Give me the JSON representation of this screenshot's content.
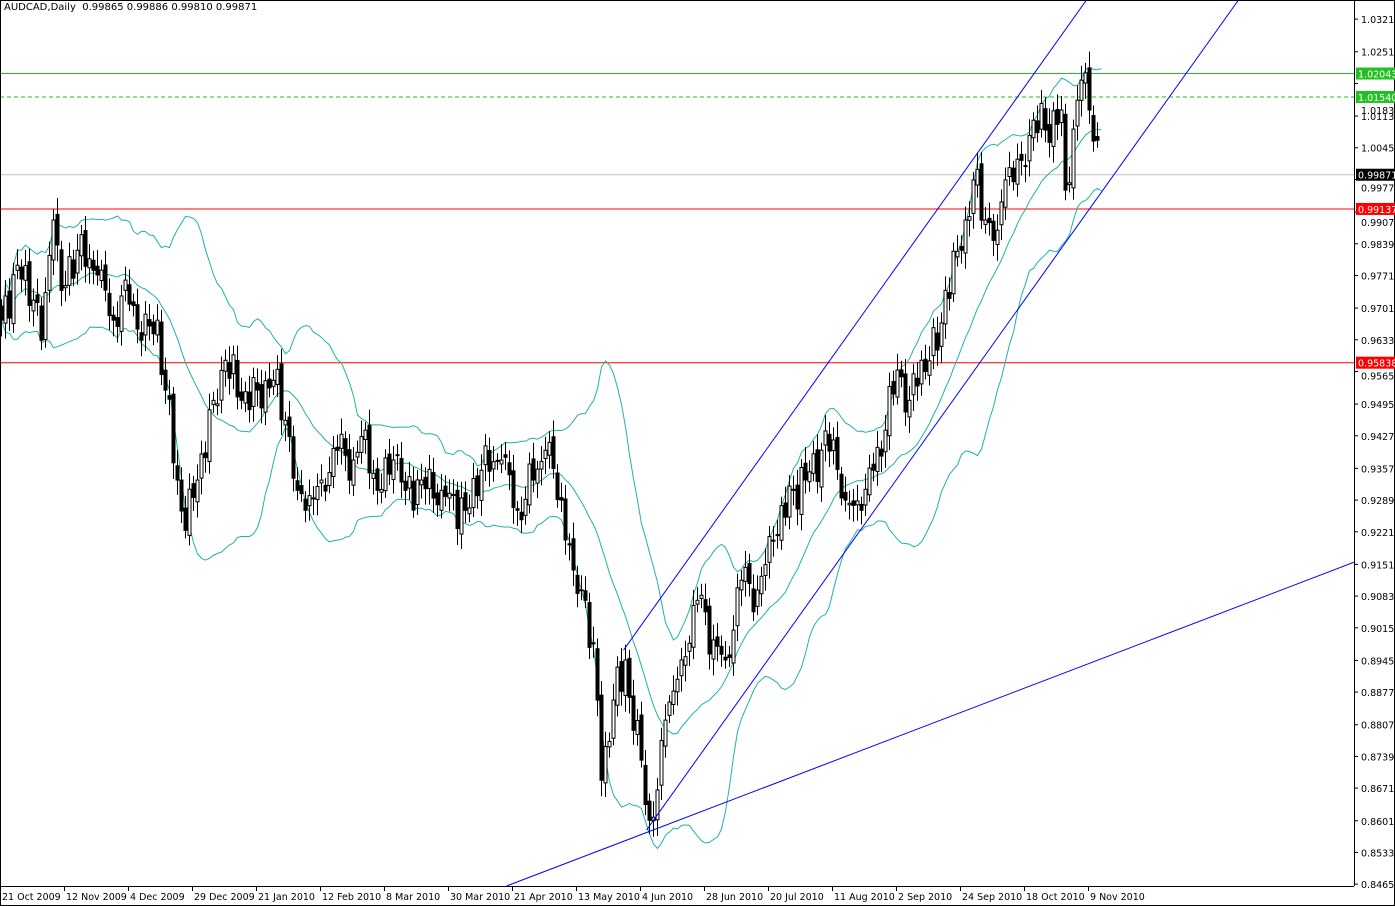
{
  "header": {
    "symbol": "AUDCAD,Daily",
    "open": "0.99865",
    "high": "0.99886",
    "low": "0.99810",
    "close": "0.99871"
  },
  "colors": {
    "background": "#ffffff",
    "bull_body": "#ffffff",
    "bear_body": "#000000",
    "wick": "#000000",
    "bollinger": "#20b2aa",
    "trendline": "#0000ff",
    "resistance": "#22c022",
    "support": "#ff0000",
    "bid_line": "#c0c0c0"
  },
  "chart_data": {
    "type": "candlestick",
    "title": "AUDCAD,Daily",
    "ylim": [
      0.8461,
      1.0362
    ],
    "grid": false,
    "bars_visible": 338,
    "close_anchors": [
      [
        0,
        0.9675
      ],
      [
        4,
        0.9793
      ],
      [
        8,
        0.9718
      ],
      [
        10,
        0.9632
      ],
      [
        13,
        0.989
      ],
      [
        15,
        0.9739
      ],
      [
        19,
        0.9825
      ],
      [
        24,
        0.9772
      ],
      [
        28,
        0.9675
      ],
      [
        31,
        0.9761
      ],
      [
        35,
        0.9632
      ],
      [
        39,
        0.9675
      ],
      [
        41,
        0.9525
      ],
      [
        44,
        0.9332
      ],
      [
        46,
        0.9224
      ],
      [
        49,
        0.9332
      ],
      [
        53,
        0.9503
      ],
      [
        56,
        0.9589
      ],
      [
        60,
        0.9503
      ],
      [
        64,
        0.9525
      ],
      [
        68,
        0.9546
      ],
      [
        71,
        0.946
      ],
      [
        74,
        0.931
      ],
      [
        76,
        0.9267
      ],
      [
        80,
        0.9332
      ],
      [
        84,
        0.9396
      ],
      [
        88,
        0.9375
      ],
      [
        91,
        0.9439
      ],
      [
        94,
        0.931
      ],
      [
        98,
        0.9375
      ],
      [
        101,
        0.931
      ],
      [
        105,
        0.9332
      ],
      [
        110,
        0.931
      ],
      [
        116,
        0.9267
      ],
      [
        120,
        0.9353
      ],
      [
        125,
        0.9375
      ],
      [
        129,
        0.9267
      ],
      [
        133,
        0.9332
      ],
      [
        136,
        0.9396
      ],
      [
        140,
        0.9289
      ],
      [
        143,
        0.9139
      ],
      [
        146,
        0.9074
      ],
      [
        149,
        0.886
      ],
      [
        150,
        0.8688
      ],
      [
        153,
        0.886
      ],
      [
        156,
        0.8946
      ],
      [
        158,
        0.8795
      ],
      [
        160,
        0.8731
      ],
      [
        162,
        0.8602
      ],
      [
        164,
        0.8667
      ],
      [
        166,
        0.8817
      ],
      [
        170,
        0.8946
      ],
      [
        174,
        0.9074
      ],
      [
        178,
        0.8989
      ],
      [
        181,
        0.8946
      ],
      [
        185,
        0.9117
      ],
      [
        189,
        0.9096
      ],
      [
        193,
        0.9203
      ],
      [
        198,
        0.931
      ],
      [
        201,
        0.9332
      ],
      [
        205,
        0.9396
      ],
      [
        208,
        0.9418
      ],
      [
        211,
        0.9289
      ],
      [
        215,
        0.9267
      ],
      [
        218,
        0.9353
      ],
      [
        221,
        0.9439
      ],
      [
        224,
        0.9568
      ],
      [
        227,
        0.9503
      ],
      [
        230,
        0.9589
      ],
      [
        234,
        0.9611
      ],
      [
        236,
        0.9739
      ],
      [
        240,
        0.9825
      ],
      [
        243,
        0.9976
      ],
      [
        246,
        0.989
      ],
      [
        249,
        0.9868
      ],
      [
        251,
        0.9976
      ],
      [
        255,
        1.0018
      ],
      [
        258,
        1.0104
      ],
      [
        261,
        1.0083
      ],
      [
        265,
        1.0126
      ],
      [
        266,
        0.9954
      ],
      [
        269,
        1.0147
      ],
      [
        270,
        1.019
      ],
      [
        272,
        1.0126
      ],
      [
        274,
        1.0061
      ],
      [
        275,
        0.99871
      ]
    ],
    "last_bar": {
      "open": 0.99865,
      "high": 0.99886,
      "low": 0.9981,
      "close": 0.99871
    },
    "indicator": {
      "name": "Bollinger Bands",
      "period": 20,
      "deviations": 2
    },
    "price_labels": [
      "1.03210",
      "1.02510",
      "1.01830",
      "1.01130",
      "1.00450",
      "0.99770",
      "0.99070",
      "0.98390",
      "0.97710",
      "0.97010",
      "0.96330",
      "0.95650",
      "0.94950",
      "0.94270",
      "0.93570",
      "0.92890",
      "0.92210",
      "0.91510",
      "0.90830",
      "0.90150",
      "0.89450",
      "0.88770",
      "0.88070",
      "0.87390",
      "0.86710",
      "0.86010",
      "0.85330",
      "0.84650"
    ],
    "x_ticks": [
      {
        "bar": 0,
        "label": "21 Oct 2009"
      },
      {
        "bar": 16,
        "label": "12 Nov 2009"
      },
      {
        "bar": 32,
        "label": "4 Dec 2009"
      },
      {
        "bar": 48,
        "label": "29 Dec 2009"
      },
      {
        "bar": 64,
        "label": "21 Jan 2010"
      },
      {
        "bar": 80,
        "label": "12 Feb 2010"
      },
      {
        "bar": 96,
        "label": "8 Mar 2010"
      },
      {
        "bar": 112,
        "label": "30 Mar 2010"
      },
      {
        "bar": 128,
        "label": "21 Apr 2010"
      },
      {
        "bar": 144,
        "label": "13 May 2010"
      },
      {
        "bar": 160,
        "label": "4 Jun 2010"
      },
      {
        "bar": 176,
        "label": "28 Jun 2010"
      },
      {
        "bar": 192,
        "label": "20 Jul 2010"
      },
      {
        "bar": 208,
        "label": "11 Aug 2010"
      },
      {
        "bar": 224,
        "label": "2 Sep 2010"
      },
      {
        "bar": 240,
        "label": "24 Sep 2010"
      },
      {
        "bar": 256,
        "label": "18 Oct 2010"
      },
      {
        "bar": 272,
        "label": "9 Nov 2010"
      }
    ],
    "horizontal_lines": [
      {
        "price": 1.02043,
        "label": "1.02043",
        "color": "#22c022",
        "label_bg": "#22c022",
        "style": "solid"
      },
      {
        "price": 1.0154,
        "label": "1.01540",
        "color": "#22c022",
        "label_bg": "#22c022",
        "style": "dashed"
      },
      {
        "price": 0.99871,
        "label": "0.99871",
        "color": "#c0c0c0",
        "label_bg": "#000000",
        "style": "solid"
      },
      {
        "price": 0.99137,
        "label": "0.99137",
        "color": "#ff0000",
        "label_bg": "#ff0000",
        "style": "solid"
      },
      {
        "price": 0.95838,
        "label": "0.95838",
        "color": "#ff0000",
        "label_bg": "#ff0000",
        "style": "solid"
      }
    ],
    "trendlines": [
      {
        "name": "channel-upper",
        "from": [
          155.5,
          0.8967
        ],
        "to": [
          271.25,
          1.0362
        ]
      },
      {
        "name": "channel-lower",
        "from": [
          161.25,
          0.8581
        ],
        "to": [
          309.25,
          1.0362
        ]
      },
      {
        "name": "long-support",
        "from": [
          126.25,
          0.8461
        ],
        "to": [
          338.25,
          0.9156
        ]
      }
    ]
  }
}
